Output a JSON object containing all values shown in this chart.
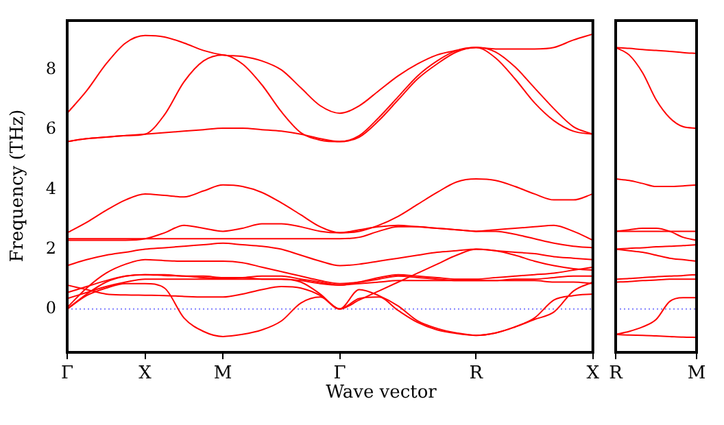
{
  "chart_data": [
    {
      "type": "line",
      "ylabel": "Frequency (THz)",
      "xlabel": "Wave vector",
      "categories": [
        "Γ",
        null,
        null,
        null,
        "X",
        null,
        null,
        null,
        "M",
        null,
        null,
        null,
        null,
        null,
        "Γ",
        null,
        null,
        null,
        null,
        null,
        null,
        "R",
        null,
        null,
        null,
        null,
        null,
        "X"
      ],
      "ylim": [
        -1.45,
        9.65
      ],
      "yticks": [
        0,
        2,
        4,
        6,
        8
      ],
      "grid": false,
      "legend": false,
      "marker": "none",
      "line_style": "solid",
      "ref_lines": [
        {
          "axis": "y",
          "value": 0,
          "color": "#7f7fff",
          "line_style": "dotted"
        }
      ],
      "series": [
        {
          "color": "#ff0000",
          "values": [
            6.55,
            7.3,
            8.2,
            8.9,
            9.15,
            9.1,
            8.9,
            8.65,
            8.5,
            8.45,
            8.3,
            8.0,
            7.4,
            6.8,
            6.55,
            6.8,
            7.3,
            7.8,
            8.2,
            8.5,
            8.65,
            8.75,
            8.6,
            8.1,
            7.4,
            6.7,
            6.1,
            5.85
          ]
        },
        {
          "color": "#ff0000",
          "values": [
            5.6,
            5.7,
            5.75,
            5.8,
            5.85,
            6.5,
            7.6,
            8.3,
            8.5,
            8.2,
            7.5,
            6.6,
            5.9,
            5.65,
            5.6,
            5.8,
            6.4,
            7.1,
            7.8,
            8.3,
            8.65,
            8.75,
            8.7,
            8.7,
            8.7,
            8.75,
            9.0,
            9.2
          ]
        },
        {
          "color": "#ff0000",
          "values": [
            5.6,
            5.7,
            5.75,
            5.8,
            5.85,
            5.9,
            5.95,
            6.0,
            6.05,
            6.05,
            6.0,
            5.95,
            5.85,
            5.7,
            5.6,
            5.75,
            6.3,
            7.0,
            7.7,
            8.2,
            8.6,
            8.75,
            8.4,
            7.7,
            6.9,
            6.3,
            5.95,
            5.85
          ]
        },
        {
          "color": "#ff0000",
          "values": [
            2.55,
            2.9,
            3.3,
            3.65,
            3.85,
            3.8,
            3.75,
            3.95,
            4.15,
            4.1,
            3.9,
            3.55,
            3.15,
            2.75,
            2.55,
            2.6,
            2.8,
            3.1,
            3.5,
            3.9,
            4.25,
            4.35,
            4.3,
            4.1,
            3.85,
            3.65,
            3.65,
            3.85
          ]
        },
        {
          "color": "#ff0000",
          "values": [
            2.3,
            2.3,
            2.3,
            2.3,
            2.35,
            2.55,
            2.8,
            2.7,
            2.6,
            2.7,
            2.85,
            2.85,
            2.75,
            2.6,
            2.55,
            2.65,
            2.75,
            2.8,
            2.75,
            2.7,
            2.65,
            2.6,
            2.65,
            2.7,
            2.75,
            2.8,
            2.6,
            2.3
          ]
        },
        {
          "color": "#ff0000",
          "values": [
            2.35,
            2.35,
            2.35,
            2.35,
            2.35,
            2.35,
            2.35,
            2.35,
            2.35,
            2.35,
            2.35,
            2.35,
            2.35,
            2.35,
            2.35,
            2.4,
            2.6,
            2.75,
            2.75,
            2.7,
            2.65,
            2.6,
            2.6,
            2.5,
            2.35,
            2.2,
            2.1,
            2.05
          ]
        },
        {
          "color": "#ff0000",
          "values": [
            1.45,
            1.65,
            1.8,
            1.9,
            2.0,
            2.05,
            2.1,
            2.15,
            2.2,
            2.15,
            2.1,
            2.0,
            1.8,
            1.6,
            1.45,
            1.5,
            1.6,
            1.7,
            1.8,
            1.9,
            1.95,
            2.0,
            1.95,
            1.9,
            1.85,
            1.75,
            1.7,
            1.65
          ]
        },
        {
          "color": "#ff0000",
          "values": [
            0.05,
            0.7,
            1.2,
            1.5,
            1.65,
            1.62,
            1.6,
            1.6,
            1.6,
            1.55,
            1.4,
            1.25,
            1.1,
            0.95,
            0.85,
            0.9,
            1.0,
            1.1,
            1.05,
            1.0,
            0.95,
            0.95,
            0.95,
            1.0,
            1.0,
            1.05,
            1.1,
            1.1
          ]
        },
        {
          "color": "#ff0000",
          "values": [
            0,
            0.5,
            0.9,
            1.1,
            1.15,
            1.15,
            1.1,
            1.1,
            1.05,
            1.05,
            1.0,
            1.0,
            0.9,
            0.5,
            0,
            0.3,
            0.6,
            0.9,
            1.2,
            1.5,
            1.8,
            2.0,
            1.95,
            1.8,
            1.6,
            1.45,
            1.35,
            1.3
          ]
        },
        {
          "color": "#ff0000",
          "values": [
            0.35,
            0.55,
            0.75,
            0.9,
            1.0,
            1.0,
            1.0,
            1.0,
            1.0,
            1.0,
            1.0,
            1.0,
            0.95,
            0.85,
            0.8,
            0.85,
            0.9,
            0.95,
            0.95,
            0.95,
            0.95,
            0.95,
            0.95,
            0.95,
            0.95,
            0.9,
            0.9,
            0.85
          ]
        },
        {
          "color": "#ff0000",
          "values": [
            0.55,
            0.75,
            0.95,
            1.1,
            1.15,
            1.12,
            1.1,
            1.05,
            1.02,
            1.05,
            1.1,
            1.1,
            1.0,
            0.9,
            0.8,
            0.9,
            1.05,
            1.15,
            1.1,
            1.05,
            1.0,
            1.0,
            1.05,
            1.1,
            1.15,
            1.2,
            1.3,
            1.4
          ]
        },
        {
          "color": "#ff0000",
          "values": [
            0.8,
            0.65,
            0.5,
            0.47,
            0.46,
            0.45,
            0.42,
            0.4,
            0.4,
            0.5,
            0.65,
            0.75,
            0.7,
            0.45,
            0,
            0.65,
            0.45,
            0.1,
            -0.4,
            -0.65,
            -0.8,
            -0.88,
            -0.8,
            -0.6,
            -0.35,
            -0.1,
            0.6,
            0.9
          ]
        },
        {
          "color": "#ff0000",
          "values": [
            0,
            0.45,
            0.7,
            0.85,
            0.85,
            0.7,
            -0.3,
            -0.75,
            -0.92,
            -0.85,
            -0.7,
            -0.4,
            0.2,
            0.4,
            0,
            0.35,
            0.4,
            -0.05,
            -0.45,
            -0.7,
            -0.82,
            -0.88,
            -0.8,
            -0.6,
            -0.3,
            0.3,
            0.45,
            0.5
          ]
        }
      ]
    },
    {
      "type": "line",
      "categories": [
        "R",
        null,
        null,
        null,
        null,
        null,
        "M"
      ],
      "ylim": [
        -1.45,
        9.65
      ],
      "yticks": [
        0,
        2,
        4,
        6,
        8
      ],
      "tick_labels": "x",
      "grid": false,
      "legend": false,
      "marker": "none",
      "line_style": "solid",
      "ref_lines": [
        {
          "axis": "y",
          "value": 0,
          "color": "#7f7fff",
          "line_style": "dotted"
        }
      ],
      "series": [
        {
          "color": "#ff0000",
          "values": [
            8.75,
            8.72,
            8.68,
            8.65,
            8.62,
            8.58,
            8.55
          ]
        },
        {
          "color": "#ff0000",
          "values": [
            8.75,
            8.5,
            7.9,
            7.0,
            6.4,
            6.1,
            6.05
          ]
        },
        {
          "color": "#ff0000",
          "values": [
            4.35,
            4.3,
            4.2,
            4.1,
            4.1,
            4.12,
            4.15
          ]
        },
        {
          "color": "#ff0000",
          "values": [
            2.6,
            2.6,
            2.6,
            2.6,
            2.6,
            2.6,
            2.6
          ]
        },
        {
          "color": "#ff0000",
          "values": [
            2.6,
            2.65,
            2.7,
            2.7,
            2.6,
            2.4,
            2.3
          ]
        },
        {
          "color": "#ff0000",
          "values": [
            2.0,
            2.03,
            2.05,
            2.08,
            2.1,
            2.12,
            2.15
          ]
        },
        {
          "color": "#ff0000",
          "values": [
            2.0,
            1.95,
            1.9,
            1.8,
            1.7,
            1.65,
            1.6
          ]
        },
        {
          "color": "#ff0000",
          "values": [
            0.9,
            0.92,
            0.95,
            0.97,
            1.0,
            1.0,
            1.0
          ]
        },
        {
          "color": "#ff0000",
          "values": [
            1.0,
            1.02,
            1.05,
            1.08,
            1.1,
            1.12,
            1.15
          ]
        },
        {
          "color": "#ff0000",
          "values": [
            -0.85,
            -0.87,
            -0.88,
            -0.9,
            -0.92,
            -0.94,
            -0.95
          ]
        },
        {
          "color": "#ff0000",
          "values": [
            -0.85,
            -0.75,
            -0.6,
            -0.35,
            0.25,
            0.38,
            0.38
          ]
        }
      ]
    }
  ]
}
